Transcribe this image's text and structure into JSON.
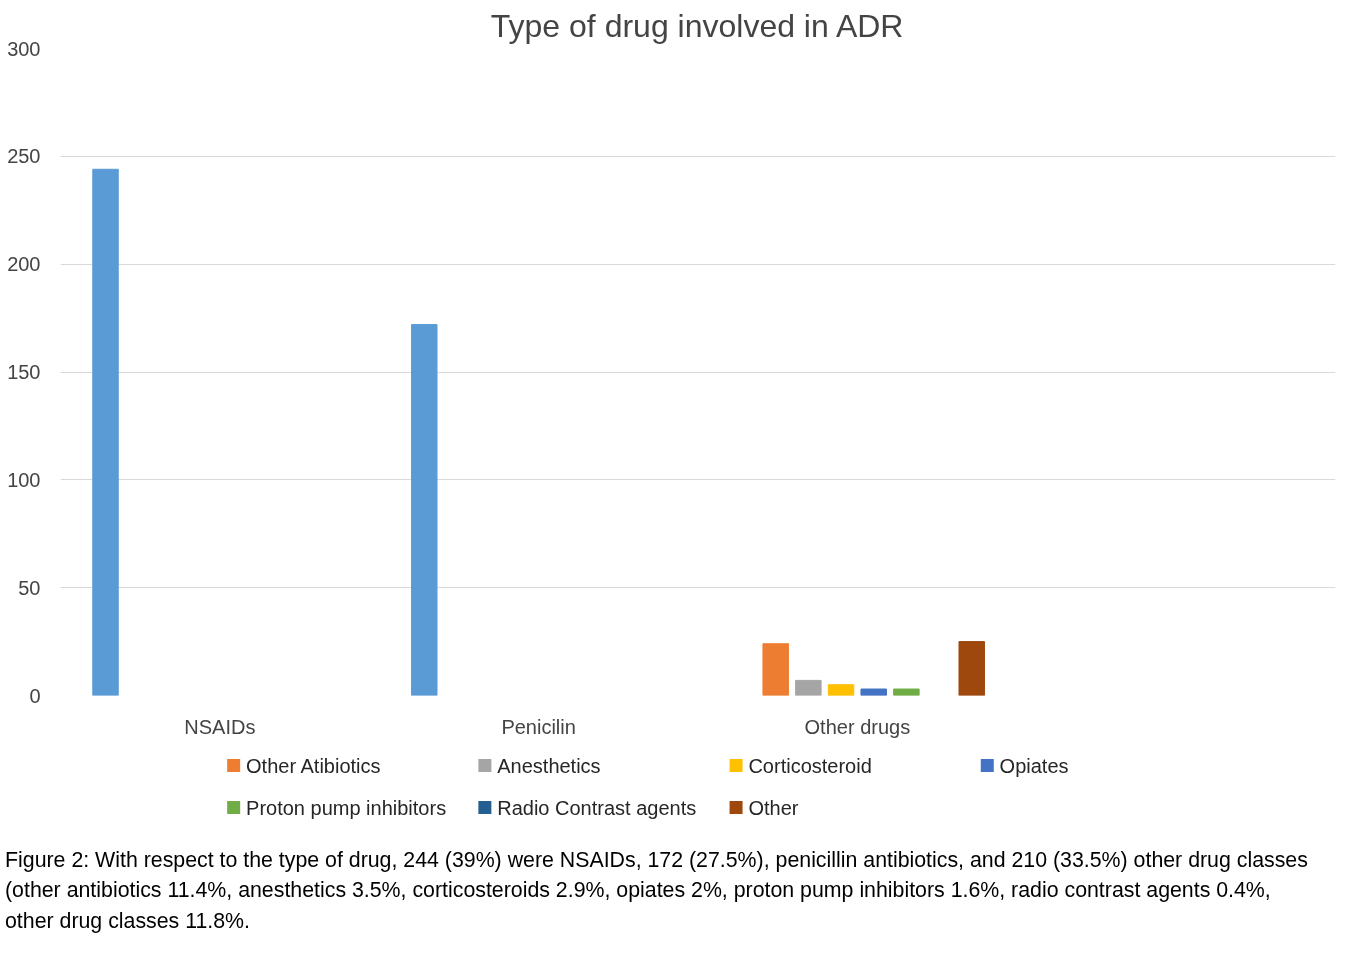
{
  "chart_data": {
    "type": "bar",
    "title": "Type of drug involved in ADR",
    "categories": [
      "NSAIDs",
      "Penicilin",
      "Other drugs",
      null
    ],
    "series": [
      {
        "color": "#5b9bd5",
        "values": [
          244,
          172,
          null,
          null
        ]
      },
      {
        "name": "Other Atibiotics",
        "color": "#ed7d31",
        "values": [
          null,
          null,
          24,
          null
        ]
      },
      {
        "name": "Anesthetics",
        "color": "#a5a5a5",
        "values": [
          null,
          null,
          7,
          null
        ]
      },
      {
        "name": "Corticosteroid",
        "color": "#ffc000",
        "values": [
          null,
          null,
          5,
          null
        ]
      },
      {
        "name": "Opiates",
        "color": "#4472c4",
        "values": [
          null,
          null,
          3,
          null
        ]
      },
      {
        "name": "Proton pump inhibitors",
        "color": "#70ad47",
        "values": [
          null,
          null,
          3,
          null
        ]
      },
      {
        "name": "Radio Contrast agents",
        "color": "#255e91",
        "values": [
          null,
          null,
          null,
          null
        ]
      },
      {
        "name": "Other",
        "color": "#9e480e",
        "values": [
          null,
          null,
          25,
          null
        ]
      }
    ],
    "ylim": [
      0,
      300
    ],
    "yticks": [
      0,
      50,
      100,
      150,
      200,
      250,
      300
    ],
    "grid": "y",
    "legend": "bottom",
    "annotations": [
      "Figure 2: With respect to the type of drug, 244 (39%) were NSAIDs, 172 (27.5%), penicillin antibiotics, and 210 (33.5%) other drug classes (other antibiotics 11.4%, anesthetics 3.5%, corticosteroids 2.9%, opiates 2%, proton pump inhibitors 1.6%, radio contrast agents 0.4%, other drug classes 11.8%."
    ]
  }
}
